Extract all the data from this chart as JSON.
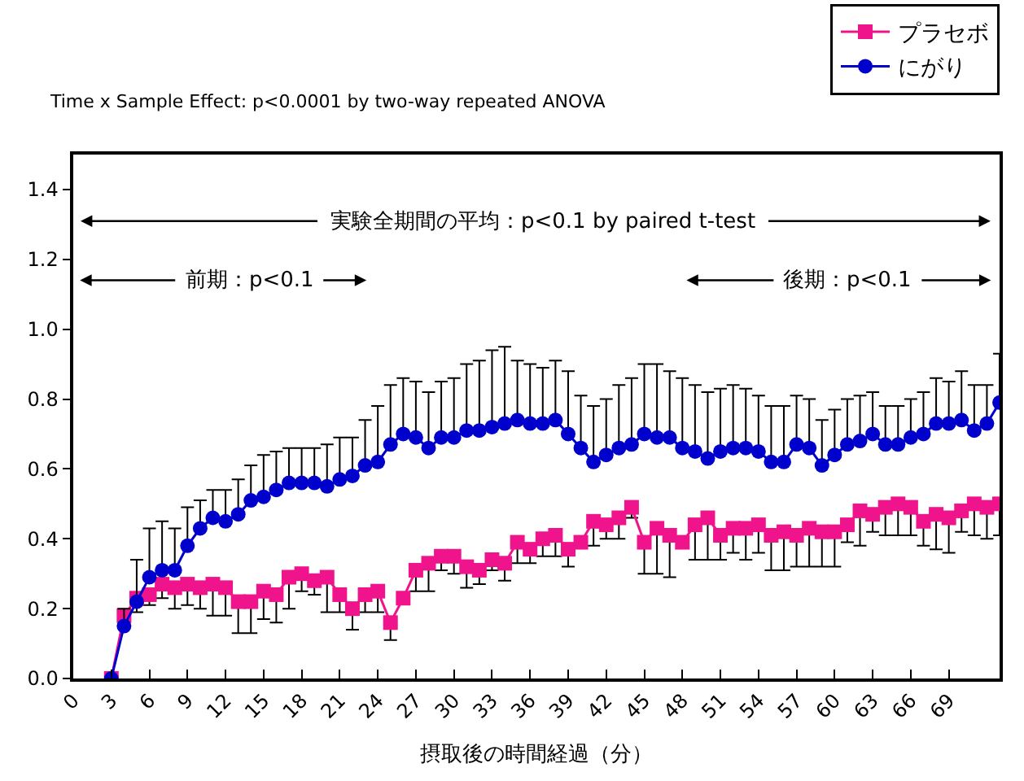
{
  "chart_data": {
    "type": "line",
    "xlabel": "摂取後の時間経過（分）",
    "x": [
      3,
      4,
      5,
      6,
      7,
      8,
      9,
      10,
      11,
      12,
      13,
      14,
      15,
      16,
      17,
      18,
      19,
      20,
      21,
      22,
      23,
      24,
      25,
      26,
      27,
      28,
      29,
      30,
      31,
      32,
      33,
      34,
      35,
      36,
      37,
      38,
      39,
      40,
      41,
      42,
      43,
      44,
      45,
      46,
      47,
      48,
      49,
      50,
      51,
      52,
      53,
      54,
      55,
      56,
      57,
      58,
      59,
      60,
      61,
      62,
      63,
      64,
      65,
      66,
      67,
      68,
      69,
      70,
      71,
      72,
      73
    ],
    "series": [
      {
        "name": "プラセボ",
        "color": "#f0148c",
        "marker": "square",
        "values": [
          0.0,
          0.18,
          0.23,
          0.24,
          0.27,
          0.26,
          0.27,
          0.26,
          0.27,
          0.26,
          0.22,
          0.22,
          0.25,
          0.24,
          0.29,
          0.3,
          0.28,
          0.29,
          0.24,
          0.2,
          0.24,
          0.25,
          0.16,
          0.23,
          0.31,
          0.33,
          0.35,
          0.35,
          0.32,
          0.31,
          0.34,
          0.33,
          0.39,
          0.37,
          0.4,
          0.41,
          0.37,
          0.39,
          0.45,
          0.44,
          0.46,
          0.49,
          0.39,
          0.43,
          0.41,
          0.39,
          0.44,
          0.46,
          0.41,
          0.43,
          0.43,
          0.44,
          0.41,
          0.42,
          0.41,
          0.43,
          0.42,
          0.42,
          0.44,
          0.48,
          0.47,
          0.49,
          0.5,
          0.49,
          0.45,
          0.47,
          0.46,
          0.48,
          0.5,
          0.49,
          0.5
        ],
        "errors": [
          null,
          null,
          [
            0.19,
            0.23
          ],
          [
            0.21,
            0.24
          ],
          [
            0.23,
            0.27
          ],
          [
            0.2,
            0.26
          ],
          [
            0.21,
            0.27
          ],
          [
            0.2,
            0.26
          ],
          [
            0.18,
            0.27
          ],
          [
            0.18,
            0.26
          ],
          [
            0.13,
            0.22
          ],
          [
            0.13,
            0.22
          ],
          [
            0.17,
            0.25
          ],
          [
            0.16,
            0.24
          ],
          [
            0.2,
            0.29
          ],
          [
            0.25,
            0.3
          ],
          [
            0.24,
            0.28
          ],
          [
            0.19,
            0.29
          ],
          [
            0.19,
            0.24
          ],
          [
            0.14,
            0.2
          ],
          [
            0.19,
            0.24
          ],
          [
            0.19,
            0.25
          ],
          [
            0.11,
            0.16
          ],
          null,
          [
            0.25,
            0.31
          ],
          [
            0.25,
            0.33
          ],
          [
            0.31,
            0.35
          ],
          [
            0.3,
            0.35
          ],
          [
            0.26,
            0.32
          ],
          [
            0.27,
            0.31
          ],
          [
            0.31,
            0.34
          ],
          [
            0.28,
            0.33
          ],
          [
            0.33,
            0.39
          ],
          [
            0.33,
            0.37
          ],
          [
            0.35,
            0.4
          ],
          [
            0.35,
            0.41
          ],
          [
            0.32,
            0.37
          ],
          null,
          [
            0.38,
            0.45
          ],
          [
            0.4,
            0.44
          ],
          [
            0.4,
            0.46
          ],
          [
            0.46,
            0.49
          ],
          [
            0.3,
            0.39
          ],
          [
            0.3,
            0.43
          ],
          [
            0.29,
            0.41
          ],
          null,
          [
            0.34,
            0.44
          ],
          [
            0.34,
            0.46
          ],
          [
            0.34,
            0.41
          ],
          [
            0.36,
            0.43
          ],
          [
            0.34,
            0.43
          ],
          [
            0.36,
            0.44
          ],
          [
            0.31,
            0.41
          ],
          [
            0.31,
            0.42
          ],
          [
            0.32,
            0.41
          ],
          [
            0.32,
            0.43
          ],
          [
            0.32,
            0.42
          ],
          [
            0.32,
            0.42
          ],
          [
            0.39,
            0.44
          ],
          [
            0.38,
            0.48
          ],
          [
            0.42,
            0.47
          ],
          [
            0.41,
            0.49
          ],
          [
            0.41,
            0.5
          ],
          [
            0.41,
            0.49
          ],
          [
            0.38,
            0.45
          ],
          [
            0.37,
            0.47
          ],
          [
            0.36,
            0.46
          ],
          [
            0.42,
            0.48
          ],
          [
            0.41,
            0.5
          ],
          [
            0.4,
            0.49
          ],
          [
            0.41,
            0.5
          ]
        ]
      },
      {
        "name": "にがり",
        "color": "#0000cc",
        "marker": "circle",
        "values": [
          0.0,
          0.15,
          0.22,
          0.29,
          0.31,
          0.31,
          0.38,
          0.43,
          0.46,
          0.45,
          0.47,
          0.51,
          0.52,
          0.54,
          0.56,
          0.56,
          0.56,
          0.55,
          0.57,
          0.58,
          0.61,
          0.62,
          0.67,
          0.7,
          0.69,
          0.66,
          0.69,
          0.69,
          0.71,
          0.71,
          0.72,
          0.73,
          0.74,
          0.73,
          0.73,
          0.74,
          0.7,
          0.66,
          0.62,
          0.64,
          0.66,
          0.67,
          0.7,
          0.69,
          0.69,
          0.66,
          0.65,
          0.63,
          0.65,
          0.66,
          0.66,
          0.65,
          0.62,
          0.62,
          0.67,
          0.66,
          0.61,
          0.64,
          0.67,
          0.68,
          0.7,
          0.67,
          0.67,
          0.69,
          0.7,
          0.73,
          0.73,
          0.74,
          0.71,
          0.73,
          0.79
        ],
        "errors": [
          null,
          [
            0.15,
            0.2
          ],
          [
            0.22,
            0.34
          ],
          [
            0.29,
            0.43
          ],
          [
            0.31,
            0.45
          ],
          [
            0.31,
            0.43
          ],
          [
            0.38,
            0.49
          ],
          [
            0.43,
            0.51
          ],
          [
            0.46,
            0.54
          ],
          [
            0.45,
            0.54
          ],
          [
            0.47,
            0.57
          ],
          [
            0.51,
            0.61
          ],
          [
            0.52,
            0.64
          ],
          [
            0.54,
            0.65
          ],
          [
            0.56,
            0.66
          ],
          [
            0.56,
            0.66
          ],
          [
            0.56,
            0.66
          ],
          [
            0.55,
            0.67
          ],
          [
            0.57,
            0.69
          ],
          [
            0.58,
            0.69
          ],
          [
            0.61,
            0.74
          ],
          [
            0.62,
            0.78
          ],
          [
            0.67,
            0.84
          ],
          [
            0.7,
            0.86
          ],
          [
            0.69,
            0.85
          ],
          [
            0.66,
            0.82
          ],
          [
            0.69,
            0.85
          ],
          [
            0.69,
            0.86
          ],
          [
            0.71,
            0.9
          ],
          [
            0.71,
            0.91
          ],
          [
            0.72,
            0.94
          ],
          [
            0.73,
            0.95
          ],
          [
            0.74,
            0.91
          ],
          [
            0.73,
            0.9
          ],
          [
            0.73,
            0.89
          ],
          [
            0.74,
            0.91
          ],
          [
            0.7,
            0.88
          ],
          [
            0.66,
            0.81
          ],
          [
            0.62,
            0.78
          ],
          [
            0.64,
            0.8
          ],
          [
            0.66,
            0.84
          ],
          [
            0.67,
            0.86
          ],
          [
            0.7,
            0.9
          ],
          [
            0.69,
            0.9
          ],
          [
            0.69,
            0.88
          ],
          [
            0.66,
            0.86
          ],
          [
            0.65,
            0.84
          ],
          [
            0.63,
            0.82
          ],
          [
            0.65,
            0.83
          ],
          [
            0.66,
            0.84
          ],
          [
            0.66,
            0.83
          ],
          [
            0.65,
            0.81
          ],
          [
            0.62,
            0.78
          ],
          [
            0.62,
            0.78
          ],
          [
            0.67,
            0.81
          ],
          [
            0.66,
            0.8
          ],
          [
            0.61,
            0.74
          ],
          [
            0.64,
            0.77
          ],
          [
            0.67,
            0.8
          ],
          [
            0.68,
            0.81
          ],
          [
            0.7,
            0.82
          ],
          [
            0.67,
            0.78
          ],
          [
            0.67,
            0.78
          ],
          [
            0.69,
            0.8
          ],
          [
            0.7,
            0.82
          ],
          [
            0.73,
            0.86
          ],
          [
            0.73,
            0.85
          ],
          [
            0.74,
            0.88
          ],
          [
            0.71,
            0.84
          ],
          [
            0.73,
            0.84
          ],
          [
            0.79,
            0.93
          ]
        ]
      }
    ],
    "xlim": [
      0,
      73
    ],
    "xticks": [
      0,
      3,
      6,
      9,
      12,
      15,
      18,
      21,
      24,
      27,
      30,
      33,
      36,
      39,
      42,
      45,
      48,
      51,
      54,
      57,
      60,
      63,
      66,
      69
    ],
    "ylim": [
      0,
      1.5
    ],
    "yticks": [
      {
        "value": 0,
        "label": "0.0"
      },
      {
        "value": 0.2,
        "label": "0.2"
      },
      {
        "value": 0.4,
        "label": "0.4"
      },
      {
        "value": 0.6,
        "label": "0.6"
      },
      {
        "value": 0.8,
        "label": "0.8"
      },
      {
        "value": 1.0,
        "label": "1.0"
      },
      {
        "value": 1.2,
        "label": "1.2"
      },
      {
        "value": 1.4,
        "label": "1.4"
      }
    ],
    "legend": "top right",
    "annotations": [
      "Time x Sample Effect: p<0.0001 by two-way repeated ANOVA",
      "実験全期間の平均：p<0.1 by paired t-test",
      "前期：p<0.1",
      "後期：p<0.1"
    ]
  }
}
